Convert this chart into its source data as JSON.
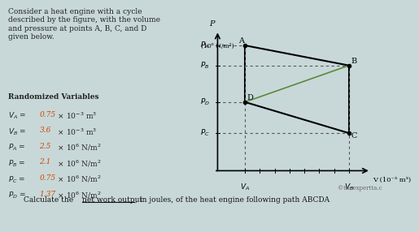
{
  "bg_color": "#c8d8d8",
  "text_color": "#222222",
  "left_panel": {
    "title": "Consider a heat engine with a cycle\ndescribed by the figure, with the volume\nand pressure at points A, B, C, and D\ngiven below.",
    "variables_title": "Randomized Variables",
    "VA_val": 0.75,
    "VB_val": 3.6,
    "PA_val": 2.5,
    "PB_val": 2.1,
    "PC_val": 0.75,
    "PD_val": 1.37
  },
  "graph": {
    "xlabel": "V (10⁻³ m³)",
    "points": {
      "A": [
        0.75,
        2.5
      ],
      "B": [
        3.6,
        2.1
      ],
      "C": [
        3.6,
        0.75
      ],
      "D": [
        0.75,
        1.37
      ]
    },
    "line_color": "#222222",
    "dashed_color": "#555555",
    "inner_line_color": "#5a8a3a"
  },
  "bottom_text": "Calculate the net work output, in joules, of the heat engine following path ABCDA",
  "watermark": "©theexpertta.c"
}
